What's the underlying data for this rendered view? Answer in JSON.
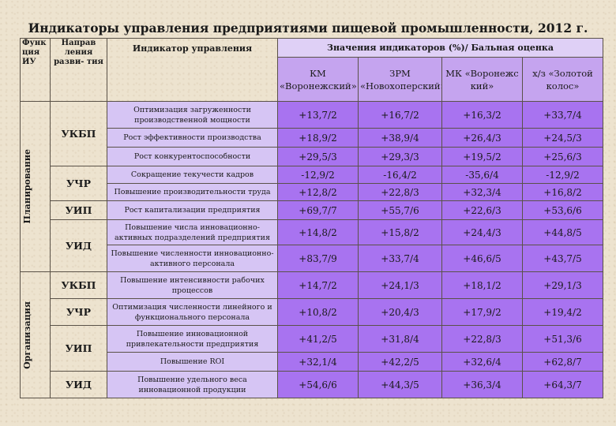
{
  "title": "Индикаторы управления предприятиями пищевой промышленности, 2012 г.",
  "headers": {
    "function": "Функ ция ИУ",
    "direction": "Направ ления разви- тия",
    "indicator": "Индикатор управления",
    "values_group": "Значения индикаторов (%)/ Бальная оценка",
    "companies": [
      "КМ «Воронежский»",
      "ЗРМ «Новохоперский»",
      "МК «Воронежс кий»",
      "х/з «Золотой колос»"
    ]
  },
  "functions": [
    "Планирование",
    "Организация"
  ],
  "rows": [
    {
      "dir": "УКБП",
      "indicator": "Оптимизация загруженности производственной мощности",
      "values": [
        "+13,7/2",
        "+16,7/2",
        "+16,3/2",
        "+33,7/4"
      ]
    },
    {
      "dir": "",
      "indicator": "Рост эффективности производства",
      "values": [
        "+18,9/2",
        "+38,9/4",
        "+26,4/3",
        "+24,5/3"
      ]
    },
    {
      "dir": "",
      "indicator": "Рост конкурентоспособности",
      "values": [
        "+29,5/3",
        "+29,3/3",
        "+19,5/2",
        "+25,6/3"
      ]
    },
    {
      "dir": "УЧР",
      "indicator": "Сокращение текучести кадров",
      "values": [
        "-12,9/2",
        "-16,4/2",
        "-35,6/4",
        "-12,9/2"
      ]
    },
    {
      "dir": "",
      "indicator": "Повышение производительности труда",
      "values": [
        "+12,8/2",
        "+22,8/3",
        "+32,3/4",
        "+16,8/2"
      ]
    },
    {
      "dir": "УИП",
      "indicator": "Рост капитализации предприятия",
      "values": [
        "+69,7/7",
        "+55,7/6",
        "+22,6/3",
        "+53,6/6"
      ]
    },
    {
      "dir": "УИД",
      "indicator": "Повышение числа инновационно-активных подразделений предприятия",
      "values": [
        "+14,8/2",
        "+15,8/2",
        "+24,4/3",
        "+44,8/5"
      ]
    },
    {
      "dir": "",
      "indicator": "Повышение численности инновационно-активного персонала",
      "values": [
        "+83,7/9",
        "+33,7/4",
        "+46,6/5",
        "+43,7/5"
      ]
    },
    {
      "dir": "УКБП",
      "indicator": "Повышение интенсивности рабочих процессов",
      "values": [
        "+14,7/2",
        "+24,1/3",
        "+18,1/2",
        "+29,1/3"
      ]
    },
    {
      "dir": "УЧР",
      "indicator": "Оптимизация численности линейного и функционального персонала",
      "values": [
        "+10,8/2",
        "+20,4/3",
        "+17,9/2",
        "+19,4/2"
      ]
    },
    {
      "dir": "УИП",
      "indicator": "Повышение инновационной привлекательности предприятия",
      "values": [
        "+41,2/5",
        "+31,8/4",
        "+22,8/3",
        "+51,3/6"
      ]
    },
    {
      "dir": "",
      "indicator": "Повышение ROI",
      "values": [
        "+32,1/4",
        "+42,2/5",
        "+32,6/4",
        "+62,8/7"
      ]
    },
    {
      "dir": "УИД",
      "indicator": "Повышение удельного веса инновационной продукции",
      "values": [
        "+54,6/6",
        "+44,3/5",
        "+36,3/4",
        "+64,3/7"
      ]
    }
  ]
}
